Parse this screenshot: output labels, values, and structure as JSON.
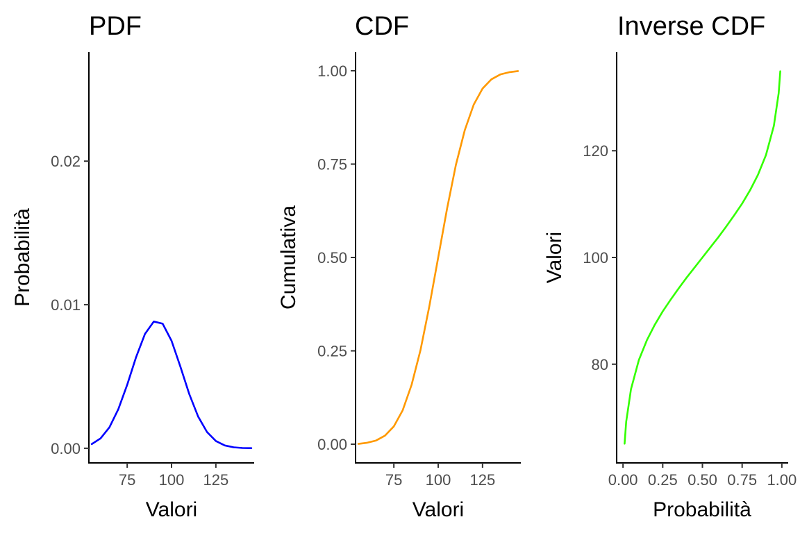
{
  "chart_data": [
    {
      "type": "line",
      "title": "PDF",
      "xlabel": "Valori",
      "ylabel": "Probabilità",
      "xlim": [
        53.4,
        146.6
      ],
      "ylim": [
        -0.00102,
        0.0276
      ],
      "x_ticks": [
        75,
        100,
        125
      ],
      "x_tick_labels": [
        "75",
        "100",
        "125"
      ],
      "y_ticks": [
        0,
        0.01,
        0.02
      ],
      "y_tick_labels": [
        "0.00",
        "0.01",
        "0.02"
      ],
      "grid": false,
      "series": [
        {
          "color": "#0000ff",
          "x": [
            55,
            60,
            65,
            70,
            75,
            80,
            85,
            90,
            95,
            100,
            105,
            110,
            115,
            120,
            125,
            130,
            135,
            140,
            145
          ],
          "y": [
            0.00029,
            0.00069,
            0.00146,
            0.00272,
            0.00443,
            0.00634,
            0.00796,
            0.00883,
            0.00868,
            0.00749,
            0.00568,
            0.00378,
            0.00221,
            0.00113,
            0.00051,
            0.0002,
            7e-05,
            2e-05,
            1e-05
          ]
        }
      ]
    },
    {
      "type": "line",
      "title": "CDF",
      "xlabel": "Valori",
      "ylabel": "Cumulativa",
      "xlim": [
        53.4,
        146.6
      ],
      "ylim": [
        -0.05,
        1.05
      ],
      "x_ticks": [
        75,
        100,
        125
      ],
      "x_tick_labels": [
        "75",
        "100",
        "125"
      ],
      "y_ticks": [
        0,
        0.25,
        0.5,
        0.75,
        1.0
      ],
      "y_tick_labels": [
        "0.00",
        "0.25",
        "0.50",
        "0.75",
        "1.00"
      ],
      "grid": false,
      "series": [
        {
          "color": "#ff9900",
          "x": [
            55,
            60,
            65,
            70,
            75,
            80,
            85,
            90,
            95,
            100,
            105,
            110,
            115,
            120,
            125,
            130,
            135,
            140,
            145
          ],
          "y": [
            0.001,
            0.004,
            0.01,
            0.023,
            0.048,
            0.091,
            0.159,
            0.252,
            0.369,
            0.5,
            0.631,
            0.748,
            0.841,
            0.909,
            0.952,
            0.977,
            0.99,
            0.996,
            0.999
          ]
        }
      ]
    },
    {
      "type": "line",
      "title": "Inverse CDF",
      "xlabel": "Probabilità",
      "ylabel": "Valori",
      "xlim": [
        -0.04,
        1.04
      ],
      "ylim": [
        61.5,
        138.5
      ],
      "x_ticks": [
        0,
        0.25,
        0.5,
        0.75,
        1.0
      ],
      "x_tick_labels": [
        "0.00",
        "0.25",
        "0.50",
        "0.75",
        "1.00"
      ],
      "y_ticks": [
        80,
        100,
        120
      ],
      "y_tick_labels": [
        "80",
        "100",
        "120"
      ],
      "grid": false,
      "series": [
        {
          "color": "#33ff00",
          "x": [
            0.01,
            0.02,
            0.05,
            0.1,
            0.15,
            0.2,
            0.25,
            0.3,
            0.35,
            0.4,
            0.45,
            0.5,
            0.55,
            0.6,
            0.65,
            0.7,
            0.75,
            0.8,
            0.85,
            0.9,
            0.95,
            0.98,
            0.99
          ],
          "y": [
            65.1,
            69.2,
            75.3,
            80.8,
            84.5,
            87.4,
            89.9,
            92.1,
            94.2,
            96.2,
            98.1,
            100,
            101.9,
            103.8,
            105.8,
            107.9,
            110.1,
            112.6,
            115.5,
            119.2,
            124.7,
            130.8,
            134.9
          ]
        }
      ]
    }
  ]
}
